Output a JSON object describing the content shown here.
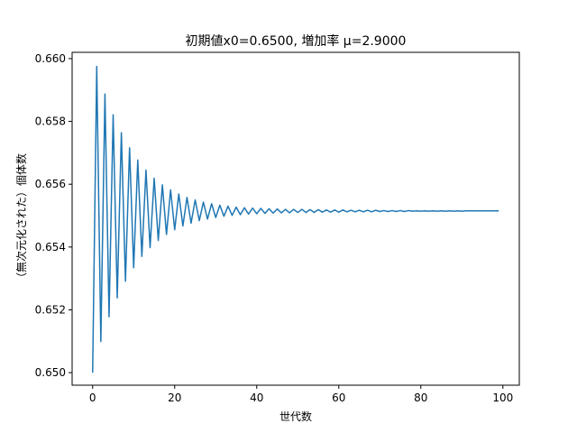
{
  "chart_data": {
    "type": "line",
    "title": "初期値x0=0.6500, 増加率 μ=2.9000",
    "xlabel": "世代数",
    "ylabel": "（無次元化された）個体数",
    "xlim": [
      -5,
      104
    ],
    "ylim": [
      0.6496,
      0.6602
    ],
    "x_ticks": [
      0,
      20,
      40,
      60,
      80,
      100
    ],
    "x_tick_labels": [
      "0",
      "20",
      "40",
      "60",
      "80",
      "100"
    ],
    "y_ticks": [
      0.65,
      0.652,
      0.654,
      0.656,
      0.658,
      0.66
    ],
    "y_tick_labels": [
      "0.650",
      "0.652",
      "0.654",
      "0.656",
      "0.658",
      "0.660"
    ],
    "grid": false,
    "legend": "none",
    "series": [
      {
        "color": "#1f77b4",
        "x": [
          0,
          1,
          2,
          3,
          4,
          5,
          6,
          7,
          8,
          9,
          10,
          11,
          12,
          13,
          14,
          15,
          16,
          17,
          18,
          19,
          20,
          21,
          22,
          23,
          24,
          25,
          26,
          27,
          28,
          29,
          30,
          31,
          32,
          33,
          34,
          35,
          36,
          37,
          38,
          39,
          40,
          41,
          42,
          43,
          44,
          45,
          46,
          47,
          48,
          49,
          50,
          51,
          52,
          53,
          54,
          55,
          56,
          57,
          58,
          59,
          60,
          61,
          62,
          63,
          64,
          65,
          66,
          67,
          68,
          69,
          70,
          71,
          72,
          73,
          74,
          75,
          76,
          77,
          78,
          79,
          80,
          81,
          82,
          83,
          84,
          85,
          86,
          87,
          88,
          89,
          90,
          91,
          92,
          93,
          94,
          95,
          96,
          97,
          98,
          99
        ],
        "y": [
          0.65,
          0.65975,
          0.65099,
          0.65887,
          0.65178,
          0.65821,
          0.65238,
          0.65764,
          0.65291,
          0.65716,
          0.65334,
          0.65677,
          0.6537,
          0.65645,
          0.65398,
          0.65619,
          0.65421,
          0.65598,
          0.6544,
          0.65582,
          0.65455,
          0.65569,
          0.65467,
          0.65558,
          0.65476,
          0.6555,
          0.65484,
          0.65543,
          0.65489,
          0.65538,
          0.65494,
          0.65533,
          0.65498,
          0.6553,
          0.65501,
          0.65527,
          0.65503,
          0.65525,
          0.65505,
          0.65524,
          0.65506,
          0.65523,
          0.65507,
          0.65522,
          0.65508,
          0.65521,
          0.65509,
          0.6552,
          0.65509,
          0.6552,
          0.6551,
          0.6552,
          0.6551,
          0.65519,
          0.6551,
          0.65519,
          0.65511,
          0.65518,
          0.65511,
          0.65518,
          0.65511,
          0.65518,
          0.65512,
          0.65517,
          0.65512,
          0.65517,
          0.65512,
          0.65517,
          0.65512,
          0.65517,
          0.65513,
          0.65516,
          0.65513,
          0.65516,
          0.65513,
          0.65516,
          0.65513,
          0.65516,
          0.65514,
          0.65515,
          0.65514,
          0.65515,
          0.65514,
          0.65515,
          0.65514,
          0.65515,
          0.65514,
          0.65515,
          0.65514,
          0.65515,
          0.65514,
          0.65515,
          0.65515,
          0.65515,
          0.65515,
          0.65515,
          0.65515,
          0.65515,
          0.65515,
          0.65515
        ]
      }
    ]
  }
}
